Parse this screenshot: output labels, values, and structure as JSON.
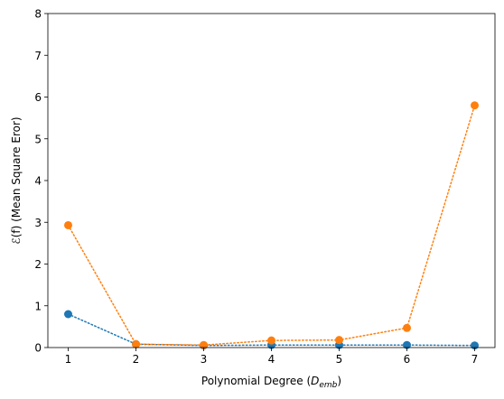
{
  "chart_data": {
    "type": "line",
    "xlabel": "Polynomial Degree (D_emb)",
    "xlabel_parts": {
      "prefix": "Polynomial Degree (",
      "base": "D",
      "sub": "emb",
      "suffix": ")"
    },
    "ylabel": "ℰ(f) (Mean Square Eror)",
    "xlim": [
      0.7,
      7.3
    ],
    "ylim": [
      0,
      8
    ],
    "xticks": [
      1,
      2,
      3,
      4,
      5,
      6,
      7
    ],
    "yticks": [
      0,
      1,
      2,
      3,
      4,
      5,
      6,
      7,
      8
    ],
    "x": [
      1,
      2,
      3,
      4,
      5,
      6,
      7
    ],
    "grid": false,
    "legend": "none",
    "line_style": "dotted",
    "marker": "circle",
    "series": [
      {
        "color": "#1f77b4",
        "values": [
          0.8,
          0.08,
          0.05,
          0.06,
          0.06,
          0.06,
          0.05
        ]
      },
      {
        "color": "#ff7f0e",
        "values": [
          2.93,
          0.08,
          0.06,
          0.17,
          0.18,
          0.47,
          5.8
        ]
      }
    ]
  }
}
